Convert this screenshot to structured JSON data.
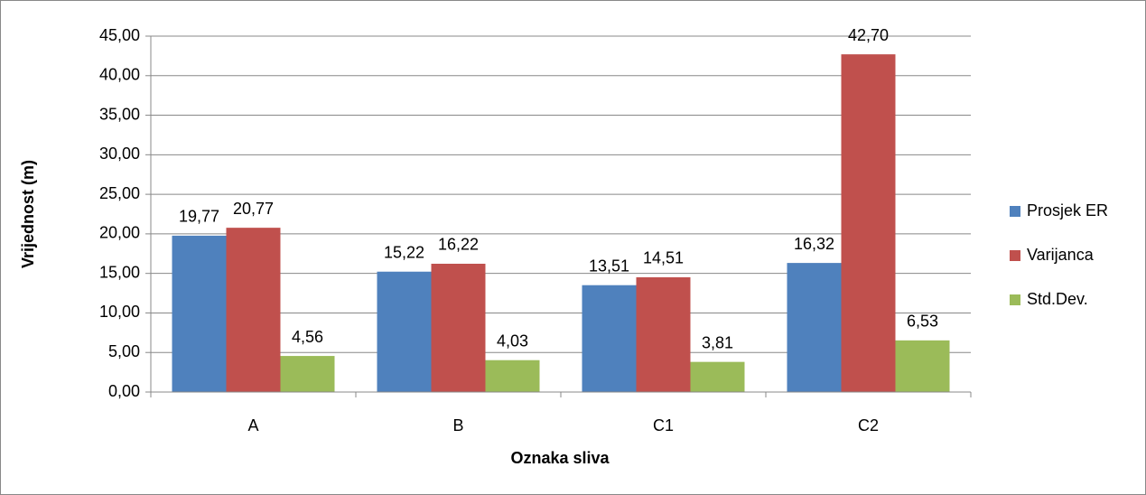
{
  "chart_data": {
    "type": "bar",
    "x_label": "Oznaka sliva",
    "y_label": "Vrijednost (m)",
    "categories": [
      "A",
      "B",
      "C1",
      "C2"
    ],
    "series": [
      {
        "name": "Prosjek ER",
        "color": "#4f81bd",
        "values": [
          19.77,
          15.22,
          13.51,
          16.32
        ],
        "value_labels": [
          "19,77",
          "15,22",
          "13,51",
          "16,32"
        ]
      },
      {
        "name": "Varijanca",
        "color": "#c0504d",
        "values": [
          20.77,
          16.22,
          14.51,
          42.7
        ],
        "value_labels": [
          "20,77",
          "16,22",
          "14,51",
          "42,70"
        ]
      },
      {
        "name": "Std.Dev.",
        "color": "#9bbb59",
        "values": [
          4.56,
          4.03,
          3.81,
          6.53
        ],
        "value_labels": [
          "4,56",
          "4,03",
          "3,81",
          "6,53"
        ]
      }
    ],
    "ylim": [
      0,
      45
    ],
    "yticks": [
      {
        "value": 0,
        "label": "0,00"
      },
      {
        "value": 5,
        "label": "5,00"
      },
      {
        "value": 10,
        "label": "10,00"
      },
      {
        "value": 15,
        "label": "15,00"
      },
      {
        "value": 20,
        "label": "20,00"
      },
      {
        "value": 25,
        "label": "25,00"
      },
      {
        "value": 30,
        "label": "30,00"
      },
      {
        "value": 35,
        "label": "35,00"
      },
      {
        "value": 40,
        "label": "40,00"
      },
      {
        "value": 45,
        "label": "45,00"
      }
    ],
    "grid": true,
    "legend": "right"
  }
}
